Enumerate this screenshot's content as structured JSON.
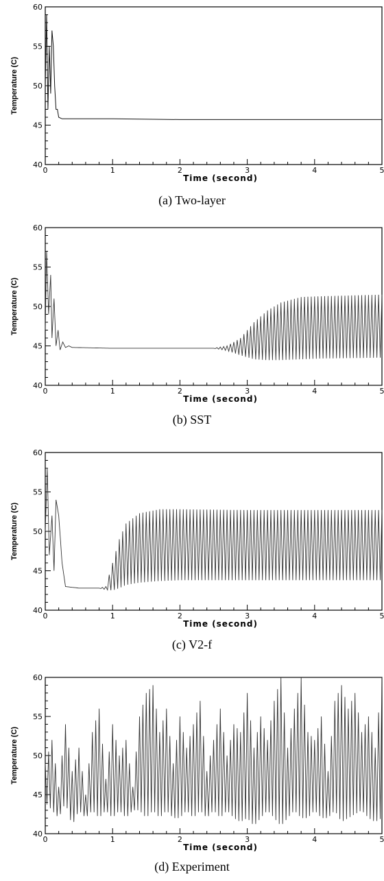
{
  "chart_data": [
    {
      "type": "line",
      "caption": "(a) Two-layer",
      "xlabel": "Time (second)",
      "ylabel": "Temperature (C)",
      "xlim": [
        0,
        5
      ],
      "ylim": [
        40,
        60
      ],
      "x_ticks": [
        "0",
        "1",
        "2",
        "3",
        "4",
        "5"
      ],
      "y_ticks": [
        "40",
        "45",
        "50",
        "55",
        "60"
      ],
      "series": [
        {
          "x": [
            0,
            0.02,
            0.04,
            0.06,
            0.08,
            0.1,
            0.12,
            0.14,
            0.16,
            0.18,
            0.2,
            0.25,
            0.3,
            1,
            2,
            3,
            4,
            5
          ],
          "y": [
            50,
            59,
            47,
            55,
            49,
            57,
            55,
            50,
            47,
            47,
            46,
            45.8,
            45.8,
            45.8,
            45.7,
            45.7,
            45.7,
            45.7
          ]
        }
      ]
    },
    {
      "type": "line",
      "caption": "(b) SST",
      "xlabel": "Time (second)",
      "ylabel": "Temperature (C)",
      "xlim": [
        0,
        5
      ],
      "ylim": [
        40,
        60
      ],
      "x_ticks": [
        "0",
        "1",
        "2",
        "3",
        "4",
        "5"
      ],
      "y_ticks": [
        "40",
        "45",
        "50",
        "55",
        "60"
      ],
      "series": [
        {
          "x": [
            0,
            0.02,
            0.05,
            0.08,
            0.1,
            0.13,
            0.16,
            0.19,
            0.22,
            0.26,
            0.3,
            0.35,
            0.4,
            1,
            2,
            2.5,
            2.7,
            2.9,
            3.1,
            3.3,
            3.5,
            3.8,
            4.1,
            5
          ],
          "y": [
            47,
            57,
            49,
            54,
            46,
            51,
            45,
            47,
            44.5,
            45.5,
            44.8,
            45,
            44.8,
            44.7,
            44.7,
            44.7,
            45,
            46,
            48,
            49.5,
            50.5,
            51.2,
            51.3,
            51.5
          ],
          "lower": [
            47,
            57,
            49,
            54,
            46,
            51,
            45,
            47,
            44.5,
            45.5,
            44.8,
            45,
            44.8,
            44.7,
            44.7,
            44.7,
            44.4,
            43.8,
            43.3,
            43.2,
            43.2,
            43.3,
            43.4,
            43.5
          ]
        }
      ]
    },
    {
      "type": "line",
      "caption": "(c) V2-f",
      "xlabel": "Time (second)",
      "ylabel": "Temperature (C)",
      "xlim": [
        0,
        5
      ],
      "ylim": [
        40,
        60
      ],
      "x_ticks": [
        "0",
        "1",
        "2",
        "3",
        "4",
        "5"
      ],
      "y_ticks": [
        "40",
        "45",
        "50",
        "55",
        "60"
      ],
      "series": [
        {
          "x": [
            0,
            0.03,
            0.06,
            0.1,
            0.13,
            0.16,
            0.2,
            0.25,
            0.3,
            0.5,
            0.8,
            0.9,
            1.0,
            1.1,
            1.2,
            1.4,
            1.7,
            2,
            3,
            4,
            5
          ],
          "y": [
            50,
            58,
            47,
            52,
            45,
            54,
            52,
            46,
            43,
            42.8,
            42.8,
            43,
            46,
            49,
            51,
            52.3,
            52.8,
            52.8,
            52.7,
            52.7,
            52.7
          ],
          "lower": [
            50,
            58,
            47,
            52,
            45,
            54,
            52,
            46,
            43,
            42.8,
            42.8,
            42.6,
            42.5,
            42.8,
            43.2,
            43.5,
            43.7,
            43.8,
            43.8,
            43.8,
            43.8
          ]
        }
      ]
    },
    {
      "type": "line",
      "caption": "(d) Experiment",
      "xlabel": "Time (second)",
      "ylabel": "Temperature (C)",
      "xlim": [
        0,
        5
      ],
      "ylim": [
        40,
        60
      ],
      "x_ticks": [
        "0",
        "1",
        "2",
        "3",
        "4",
        "5"
      ],
      "y_ticks": [
        "40",
        "45",
        "50",
        "55",
        "60"
      ],
      "series": [
        {
          "x": [
            0,
            0.1,
            0.2,
            0.3,
            0.4,
            0.5,
            0.6,
            0.7,
            0.8,
            0.9,
            1.0,
            1.1,
            1.2,
            1.3,
            1.4,
            1.5,
            1.6,
            1.7,
            1.8,
            1.9,
            2.0,
            2.1,
            2.2,
            2.3,
            2.4,
            2.5,
            2.6,
            2.7,
            2.8,
            2.9,
            3.0,
            3.1,
            3.2,
            3.3,
            3.4,
            3.5,
            3.6,
            3.7,
            3.8,
            3.9,
            4.0,
            4.1,
            4.2,
            4.3,
            4.4,
            4.5,
            4.6,
            4.7,
            4.8,
            4.9,
            5.0
          ],
          "y": [
            49,
            52,
            46,
            54,
            48,
            51,
            45,
            53,
            56,
            47,
            54,
            50,
            52,
            46,
            55,
            58,
            59,
            53,
            56,
            49,
            55,
            51,
            54,
            57,
            48,
            52,
            56,
            50,
            54,
            53,
            58,
            51,
            55,
            52,
            57,
            60,
            51,
            56,
            60,
            53,
            52,
            55,
            48,
            57,
            59,
            56,
            58,
            53,
            55,
            51,
            60
          ],
          "lower": [
            44,
            43,
            42,
            44,
            41,
            43,
            42,
            43,
            42,
            43,
            42,
            43,
            42,
            43,
            43,
            42,
            43,
            42,
            43,
            42,
            42,
            43,
            42,
            43,
            42,
            43,
            42,
            43,
            42,
            41.5,
            42,
            41,
            42,
            43,
            42,
            41,
            42,
            43,
            42,
            42,
            43,
            42,
            42,
            43,
            41.5,
            42,
            42.5,
            43,
            42,
            41.5,
            42
          ]
        }
      ]
    }
  ]
}
